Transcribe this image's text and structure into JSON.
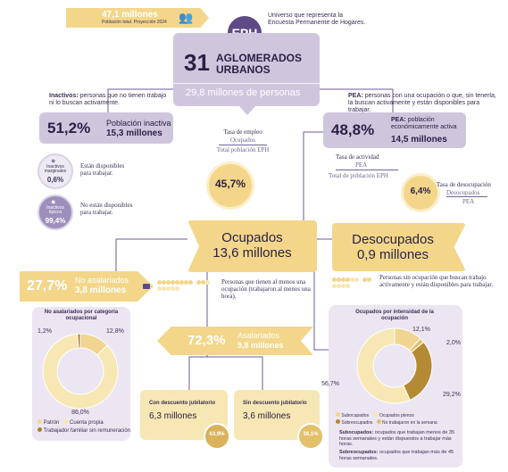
{
  "top_banner": {
    "value": "47,1 millones",
    "label": "Población total. Proyección 2024"
  },
  "eph": {
    "badge": "EPH",
    "desc": "Universo que representa la Encuesta Permanente de Hogares."
  },
  "aglomerados": {
    "number": "31",
    "line1": "AGLOMERADOS",
    "line2": "URBANOS",
    "people": "29,8 millones de personas"
  },
  "inactivos": {
    "note_bold": "Inactivos:",
    "note_text": "personas que no tienen trabajo ni lo buscan activamente.",
    "pct": "51,2%",
    "label": "Población inactiva",
    "amount": "15,3 millones",
    "marginal": {
      "name": "Inactivos marginales",
      "pct": "0,6%",
      "desc": "Están disponibles para trabajar."
    },
    "tipicos": {
      "name": "Inactivos típicos",
      "pct": "99,4%",
      "desc": "No están disponibles para trabajar."
    }
  },
  "pea": {
    "note_bold": "PEA:",
    "note_text": "personas con una ocupación o que, sin tenerla, la buscan activamente y están disponibles para trabajar.",
    "pct": "48,8%",
    "label_bold": "PEA:",
    "label": "población económicamente activa",
    "amount": "14,5 millones"
  },
  "tasa_empleo": {
    "title": "Tasa de empleo",
    "num": "Ocupados",
    "den": "Total población EPH",
    "value": "45,7%"
  },
  "tasa_actividad": {
    "title": "Tasa de actividad",
    "num": "PEA",
    "den": "Total de población EPH"
  },
  "tasa_desocupacion": {
    "title": "Tasa de desocupación",
    "num": "Desocupados",
    "den": "PEA",
    "value": "6,4%"
  },
  "ocupados": {
    "title": "Ocupados",
    "amount": "13,6 millones",
    "desc": "Personas que tienen al menos una ocupación (trabajaron al menos una hora)."
  },
  "desocupados": {
    "title": "Desocupados",
    "amount": "0,9 millones",
    "desc": "Personas sin ocupación que buscan trabajo activamente y están disponibles para trabajar."
  },
  "no_asalariados": {
    "pct": "27,7%",
    "label": "No asalariados",
    "amount": "3,8 millones"
  },
  "asalariados": {
    "pct": "72,3%",
    "label": "Asalariados",
    "amount": "9,8 millones"
  },
  "con_descuento": {
    "label": "Con descuento jubilatorio",
    "amount": "6,3 millones",
    "pct": "63,9%"
  },
  "sin_descuento": {
    "label": "Sin descuento jubilatorio",
    "amount": "3,6 millones",
    "pct": "36,1%"
  },
  "subocupacion_note": {
    "sub_bold": "Subocupados:",
    "sub_text": "ocupados que trabajan menos de 35 horas semanales y están dispuestos a trabajar más horas.",
    "sobre_bold": "Sobreocupados:",
    "sobre_text": "ocupados que trabajan más de 45 horas semanales."
  },
  "chart_data": [
    {
      "type": "pie",
      "title": "No asalariados por categoría ocupacional",
      "categories": [
        "Patrón",
        "Cuenta propia",
        "Trabajador familiar sin remuneración"
      ],
      "values": [
        12.8,
        86.0,
        1.2
      ],
      "labels": [
        "12,8%",
        "86,0%",
        "1,2%"
      ],
      "colors": [
        "#f1d48f",
        "#f7e7b4",
        "#a8802c"
      ]
    },
    {
      "type": "pie",
      "title": "Ocupados por intensidad de la ocupación",
      "categories": [
        "Subocupados",
        "Ocupados plenos",
        "Sobreocupados",
        "No trabajaron en la semana"
      ],
      "values": [
        12.1,
        56.7,
        29.2,
        2.0
      ],
      "labels": [
        "12,1%",
        "56,7%",
        "29,2%",
        "2,0%"
      ],
      "colors": [
        "#f1d48f",
        "#f7e7b4",
        "#b48a35",
        "#e3c06a"
      ]
    }
  ]
}
